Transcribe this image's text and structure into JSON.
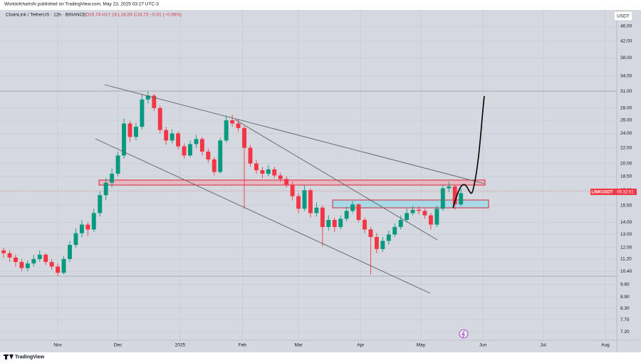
{
  "chart_data": {
    "type": "candlestick",
    "publisher": "Worldofchartsfx published on TradingView.com, May 23, 2025 03:27 UTC-3",
    "title": "ChainLink / TetherUS · 12h · BINANCE",
    "ohlc_text": "O16.74 H17.16 L16.59 C16.73 −0.01 (−0.06%)",
    "currency": "USDT",
    "symbol_tag": "LINKUSDT",
    "countdown": "05:32:01",
    "brand": "TradingView",
    "log_scale": true,
    "grid": true,
    "up_color": "#089981",
    "down_color": "#f23645",
    "xlim": [
      -28.8,
      278.7
    ],
    "xticks": [
      {
        "value": 0,
        "label": "Nov"
      },
      {
        "value": 30,
        "label": "Dec"
      },
      {
        "value": 61,
        "label": "2025"
      },
      {
        "value": 92,
        "label": "Feb"
      },
      {
        "value": 120,
        "label": "Mar"
      },
      {
        "value": 151,
        "label": "Apr"
      },
      {
        "value": 181,
        "label": "May"
      },
      {
        "value": 212,
        "label": "Jun"
      },
      {
        "value": 242,
        "label": "Jul"
      },
      {
        "value": 273,
        "label": "Aug"
      }
    ],
    "ylim": [
      6.84,
      50.8
    ],
    "yticks": [
      {
        "value": 46,
        "label": "46.00"
      },
      {
        "value": 42,
        "label": "42.00"
      },
      {
        "value": 38,
        "label": "38.00"
      },
      {
        "value": 34,
        "label": "34.00"
      },
      {
        "value": 31,
        "label": "31.00"
      },
      {
        "value": 28,
        "label": "28.00"
      },
      {
        "value": 26,
        "label": "26.00"
      },
      {
        "value": 24,
        "label": "24.00"
      },
      {
        "value": 22,
        "label": "22.00"
      },
      {
        "value": 20,
        "label": "20.00"
      },
      {
        "value": 18.5,
        "label": "18.50"
      },
      {
        "value": 17,
        "label": "17.00"
      },
      {
        "value": 15.5,
        "label": "15.50"
      },
      {
        "value": 14,
        "label": "14.00"
      },
      {
        "value": 13,
        "label": "13.00"
      },
      {
        "value": 12,
        "label": "12.00"
      },
      {
        "value": 11.2,
        "label": "11.20"
      },
      {
        "value": 10.4,
        "label": "10.40"
      },
      {
        "value": 9.6,
        "label": "9.60"
      },
      {
        "value": 8.9,
        "label": "8.90"
      },
      {
        "value": 8.3,
        "label": "8.30"
      },
      {
        "value": 7.75,
        "label": "7.75"
      },
      {
        "value": 7.2,
        "label": "7.20"
      }
    ],
    "x": [
      -27,
      -24,
      -21,
      -18,
      -15,
      -12,
      -9,
      -6,
      -3,
      0,
      3,
      6,
      9,
      12,
      15,
      18,
      21,
      24,
      27,
      30,
      33,
      36,
      39,
      42,
      45,
      48,
      51,
      54,
      57,
      60,
      63,
      66,
      69,
      72,
      75,
      78,
      81,
      84,
      87,
      90,
      93,
      96,
      99,
      102,
      105,
      108,
      111,
      114,
      117,
      120,
      123,
      126,
      129,
      132,
      135,
      138,
      141,
      144,
      147,
      150,
      153,
      156,
      159,
      162,
      165,
      168,
      171,
      174,
      177,
      180,
      183,
      186,
      189,
      192,
      195,
      198,
      201
    ],
    "open": [
      11.8,
      11.6,
      11.3,
      11.0,
      10.6,
      10.9,
      11.2,
      11.5,
      11.0,
      10.7,
      10.3,
      11.2,
      12.2,
      13.1,
      13.8,
      13.4,
      14.8,
      16.5,
      17.8,
      18.8,
      21.0,
      25.5,
      23.5,
      25.0,
      29.5,
      30.2,
      28.0,
      24.5,
      23.0,
      24.0,
      22.2,
      21.0,
      22.5,
      23.2,
      21.5,
      20.5,
      19.0,
      23.0,
      26.0,
      25.5,
      24.8,
      22.0,
      20.0,
      19.2,
      18.8,
      19.3,
      18.6,
      18.2,
      17.6,
      16.4,
      15.2,
      17.0,
      14.8,
      15.3,
      13.6,
      14.2,
      13.6,
      14.3,
      15.0,
      15.6,
      14.2,
      13.4,
      12.8,
      11.9,
      12.5,
      13.0,
      13.6,
      14.2,
      14.8,
      15.1,
      15.0,
      14.6,
      13.8,
      15.2,
      17.2,
      17.4,
      15.6
    ],
    "high": [
      12.0,
      11.8,
      11.5,
      11.2,
      11.1,
      11.5,
      11.8,
      11.6,
      11.2,
      10.9,
      11.4,
      12.5,
      13.5,
      14.2,
      14.0,
      15.2,
      16.9,
      18.3,
      19.4,
      21.5,
      26.3,
      25.9,
      25.6,
      30.4,
      31.0,
      30.5,
      28.4,
      25.0,
      24.6,
      24.3,
      22.6,
      23.0,
      23.8,
      23.5,
      21.9,
      20.8,
      23.4,
      26.8,
      26.9,
      26.2,
      25.1,
      22.4,
      20.4,
      19.6,
      19.8,
      19.6,
      18.9,
      18.5,
      17.9,
      16.7,
      17.5,
      17.2,
      15.8,
      15.5,
      14.6,
      14.4,
      14.6,
      15.4,
      15.9,
      15.7,
      14.4,
      13.6,
      13.1,
      12.8,
      13.3,
      13.9,
      14.6,
      15.2,
      15.5,
      15.4,
      15.2,
      14.8,
      15.5,
      17.6,
      17.9,
      17.6,
      17.2
    ],
    "low": [
      11.3,
      11.0,
      10.7,
      10.4,
      10.4,
      10.7,
      11.0,
      10.8,
      10.5,
      10.1,
      10.2,
      11.0,
      12.0,
      12.8,
      12.9,
      13.2,
      14.5,
      16.0,
      17.3,
      18.5,
      20.6,
      22.8,
      23.0,
      24.6,
      28.8,
      27.5,
      24.0,
      22.4,
      22.6,
      21.8,
      20.6,
      20.8,
      22.0,
      21.0,
      20.1,
      18.6,
      18.8,
      22.7,
      25.0,
      24.3,
      15.2,
      19.6,
      18.8,
      18.3,
      18.5,
      18.3,
      17.9,
      17.3,
      16.0,
      14.8,
      15.0,
      14.4,
      14.5,
      12.1,
      13.3,
      13.2,
      13.4,
      14.1,
      14.8,
      14.0,
      13.1,
      10.2,
      11.6,
      11.7,
      12.2,
      12.8,
      13.4,
      14.0,
      14.6,
      14.7,
      14.3,
      13.4,
      13.6,
      15.0,
      16.8,
      15.1,
      15.4
    ],
    "close": [
      11.6,
      11.3,
      11.0,
      10.6,
      10.9,
      11.2,
      11.5,
      11.0,
      10.7,
      10.3,
      11.2,
      12.2,
      13.1,
      13.8,
      13.4,
      14.8,
      16.5,
      17.8,
      18.8,
      21.0,
      25.5,
      23.5,
      25.0,
      29.5,
      30.2,
      28.0,
      24.5,
      23.0,
      24.0,
      22.2,
      21.0,
      22.5,
      23.2,
      21.5,
      20.5,
      19.0,
      23.0,
      26.0,
      25.5,
      24.8,
      22.0,
      20.0,
      19.2,
      18.8,
      19.3,
      18.6,
      18.2,
      17.6,
      16.4,
      15.2,
      17.0,
      14.8,
      15.3,
      13.6,
      14.2,
      13.6,
      14.3,
      15.0,
      15.6,
      14.2,
      13.4,
      12.8,
      11.9,
      12.5,
      13.0,
      13.6,
      14.2,
      14.8,
      15.1,
      15.0,
      14.6,
      13.8,
      15.2,
      17.2,
      17.4,
      15.6,
      16.7
    ]
  }
}
